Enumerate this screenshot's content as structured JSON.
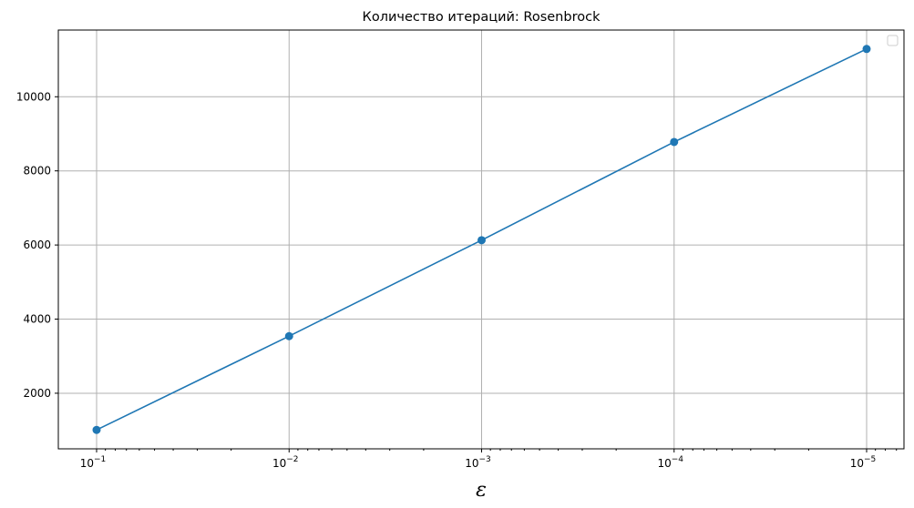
{
  "chart_data": {
    "type": "line",
    "title": "Количество итераций: Rosenbrock",
    "xlabel": "ε",
    "ylabel": "",
    "x_scale": "log",
    "x_inverted": true,
    "x": [
      0.1,
      0.01,
      0.001,
      0.0001,
      1e-05
    ],
    "x_tick_labels": [
      {
        "base": "10",
        "exp": "−1"
      },
      {
        "base": "10",
        "exp": "−2"
      },
      {
        "base": "10",
        "exp": "−3"
      },
      {
        "base": "10",
        "exp": "−4"
      },
      {
        "base": "10",
        "exp": "−5"
      }
    ],
    "series": [
      {
        "values": [
          1010,
          3540,
          6130,
          8780,
          11290
        ],
        "color": "#1f77b4",
        "marker": "circle"
      }
    ],
    "y_ticks": [
      2000,
      4000,
      6000,
      8000,
      10000
    ],
    "ylim": [
      500,
      11800
    ],
    "grid": true,
    "legend": "top-right (empty)"
  }
}
